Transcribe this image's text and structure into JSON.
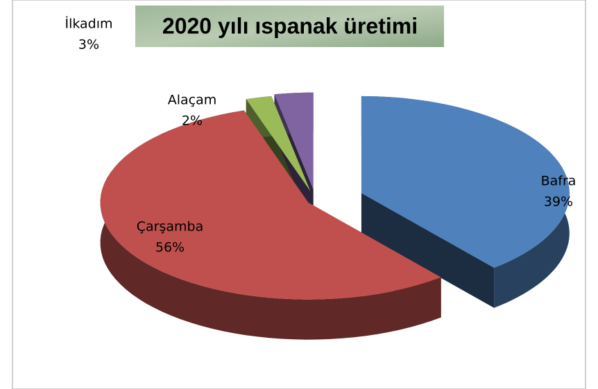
{
  "chart_data": {
    "type": "pie",
    "title": "2020 yılı ıspanak üretimi",
    "categories": [
      "Bafra",
      "Çarşamba",
      "Alaçam",
      "İlkadım"
    ],
    "values": [
      39,
      56,
      2,
      3
    ],
    "value_labels": [
      "39%",
      "56%",
      "2%",
      "3%"
    ],
    "colors": [
      "#4f81bd",
      "#c0504d",
      "#9bbb59",
      "#8064a2"
    ]
  }
}
